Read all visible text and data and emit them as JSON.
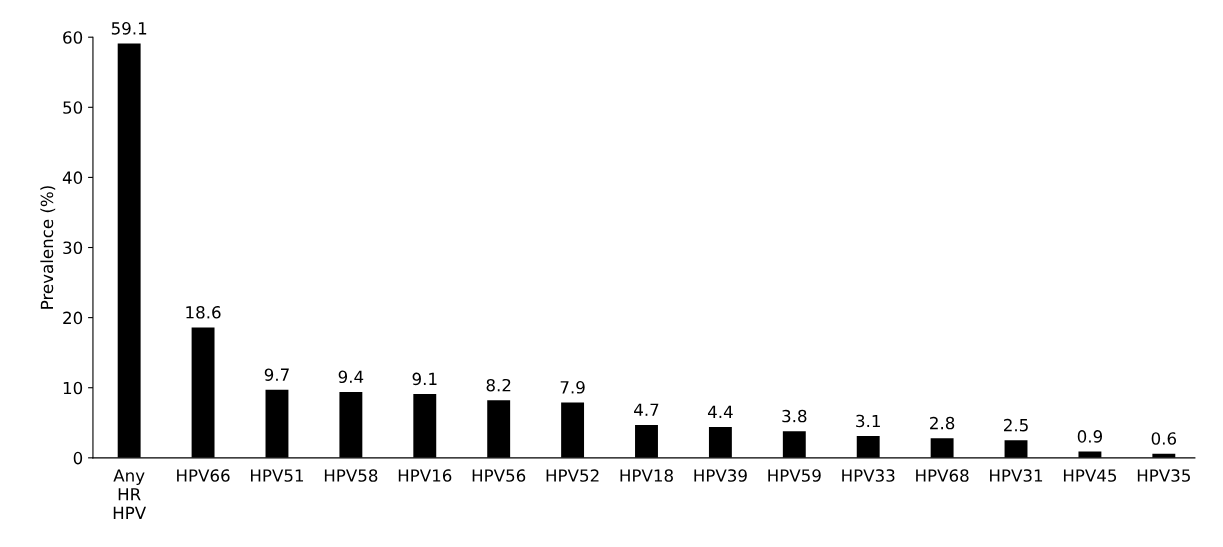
{
  "chart_data": {
    "type": "bar",
    "ylabel": "Prevalence (%)",
    "categories": [
      "Any\nHR\nHPV",
      "HPV66",
      "HPV51",
      "HPV58",
      "HPV16",
      "HPV56",
      "HPV52",
      "HPV18",
      "HPV39",
      "HPV59",
      "HPV33",
      "HPV68",
      "HPV31",
      "HPV45",
      "HPV35"
    ],
    "values": [
      59.1,
      18.6,
      9.7,
      9.4,
      9.1,
      8.2,
      7.9,
      4.7,
      4.4,
      3.8,
      3.1,
      2.8,
      2.5,
      0.9,
      0.6
    ],
    "color": "#000000",
    "ylim": [
      0,
      60
    ],
    "yticks": [
      0,
      10,
      20,
      30,
      40,
      50,
      60
    ],
    "data_labels": true,
    "grid": false,
    "legend": false
  }
}
